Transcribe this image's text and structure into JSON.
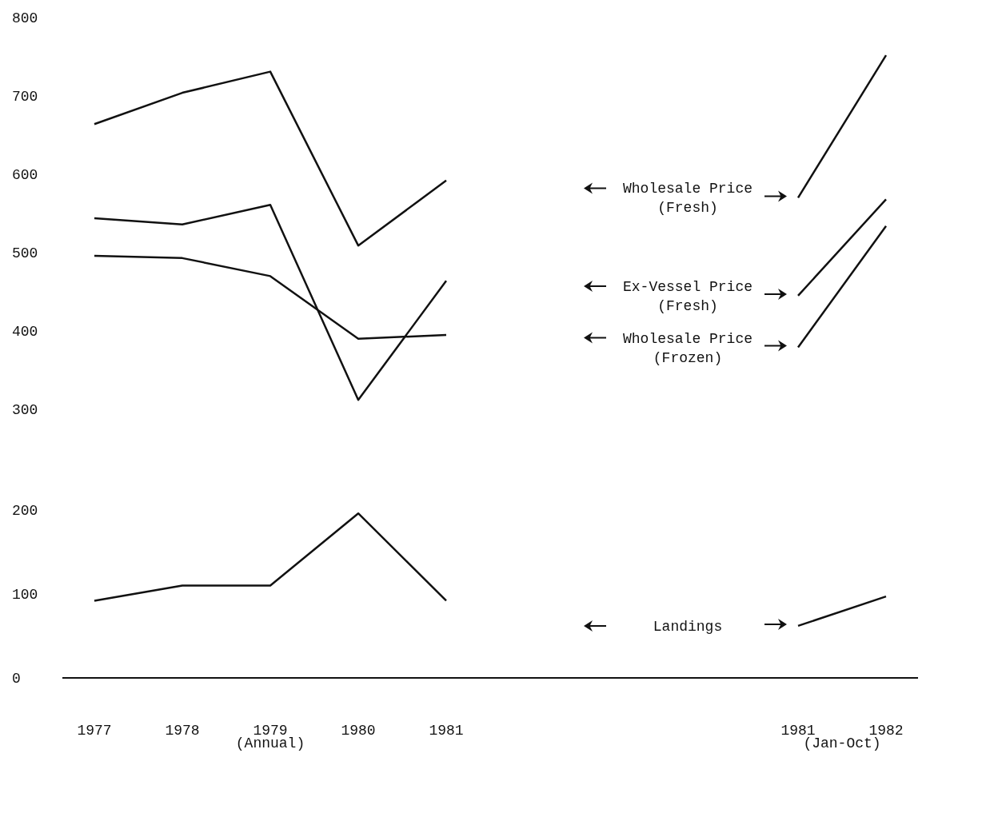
{
  "chart_data": [
    {
      "type": "line",
      "categories": [
        "1977",
        "1978",
        "1979",
        "1980",
        "1981",
        null,
        null,
        null,
        "1981",
        "1982"
      ],
      "ylim": [
        300,
        800
      ],
      "yticks": [
        300,
        400,
        500,
        600,
        700,
        800
      ],
      "tick_labels": "y",
      "grid": false,
      "legend": "right",
      "marker": "none",
      "line_style": "solid",
      "series": [
        {
          "name": "Wholesale Price (Fresh)",
          "color": "#111111",
          "values": [
            664,
            704,
            731,
            509,
            592,
            null,
            null,
            null,
            570,
            752
          ]
        },
        {
          "name": "Ex-Vessel Price (Fresh)",
          "color": "#111111",
          "values": [
            544,
            536,
            561,
            312,
            464,
            null,
            null,
            null,
            445,
            568
          ]
        },
        {
          "name": "Wholesale Price (Frozen)",
          "color": "#111111",
          "values": [
            496,
            493,
            470,
            390,
            395,
            null,
            null,
            null,
            379,
            534
          ]
        }
      ]
    },
    {
      "type": "line",
      "categories": [
        "1977",
        "1978",
        "1979",
        "1980",
        "1981",
        null,
        null,
        null,
        "1981",
        "1982"
      ],
      "ylim": [
        0,
        200
      ],
      "yticks": [
        0,
        100,
        200
      ],
      "grid": false,
      "legend": false,
      "marker": "none",
      "line_style": "solid",
      "annotations": [
        "(Annual)",
        "(Jan-Oct)"
      ],
      "series": [
        {
          "name": "Landings",
          "color": "#111111",
          "values": [
            92,
            110,
            110,
            196,
            92,
            null,
            null,
            null,
            62,
            97
          ]
        }
      ]
    }
  ]
}
